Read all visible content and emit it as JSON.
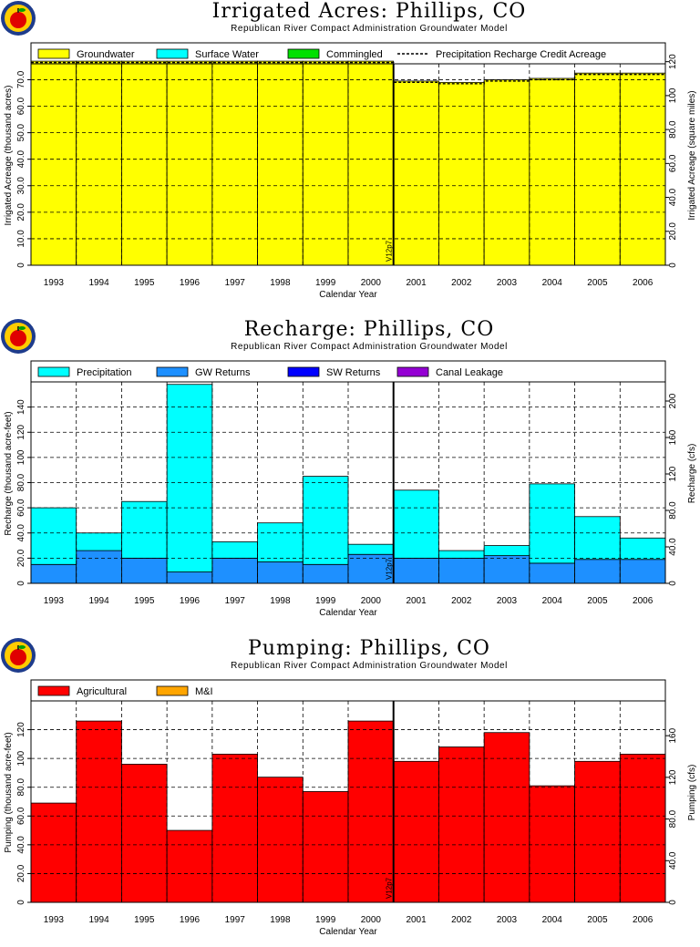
{
  "logo": "apple-logo-icon",
  "colors": {
    "groundwater": "#ffff00",
    "surface_water": "#00ffff",
    "commingled": "#00e000",
    "precipitation": "#00ffff",
    "gw_returns": "#1e90ff",
    "sw_returns": "#0000ff",
    "canal_leakage": "#9400d3",
    "agricultural": "#ff0000",
    "mi": "#ffa500"
  },
  "chart_data": [
    {
      "type": "bar",
      "title": "Irrigated Acres: Phillips, CO",
      "subtitle": "Republican River Compact Administration Groundwater Model",
      "xlabel": "Calendar Year",
      "ylabel": "Irrigated Acreage (thousand acres)",
      "ylabel_right": "Irrigated Acreage (square miles)",
      "categories": [
        "1993",
        "1994",
        "1995",
        "1996",
        "1997",
        "1998",
        "1999",
        "2000",
        "2001",
        "2002",
        "2003",
        "2004",
        "2005",
        "2006"
      ],
      "ylim": [
        0,
        76
      ],
      "yticks": [
        0,
        10,
        20,
        30,
        40,
        50,
        60,
        70
      ],
      "ytick_labels": [
        "0",
        "10.0",
        "20.0",
        "30.0",
        "40.0",
        "50.0",
        "60.0",
        "70.0"
      ],
      "ylim_right": [
        0,
        118.75
      ],
      "yticks_right": [
        0,
        20,
        40,
        60,
        80,
        100,
        120
      ],
      "ytick_labels_right": [
        "0",
        "20.0",
        "40.0",
        "60.0",
        "80.0",
        "100",
        "120"
      ],
      "legend": [
        "Groundwater",
        "Surface Water",
        "Commingled",
        "Precipitation Recharge Credit Acreage"
      ],
      "series": [
        {
          "name": "Groundwater",
          "color_key": "groundwater",
          "values": [
            77,
            77,
            77,
            77,
            77,
            77,
            77,
            77,
            69.5,
            69,
            70,
            70.5,
            72.5,
            72.5
          ]
        },
        {
          "name": "Surface Water",
          "color_key": "surface_water",
          "values": [
            0,
            0,
            0,
            0,
            0,
            0,
            0,
            0,
            0,
            0,
            0,
            0,
            0,
            0
          ]
        },
        {
          "name": "Commingled",
          "color_key": "commingled",
          "values": [
            0,
            0,
            0,
            0,
            0,
            0,
            0,
            0,
            0,
            0,
            0,
            0,
            0,
            0
          ]
        }
      ],
      "dashed_line": {
        "name": "Precipitation Recharge Credit Acreage",
        "values": [
          76.5,
          76.5,
          76.5,
          76.5,
          76.5,
          76.5,
          76.5,
          76.5,
          69,
          68.5,
          69.5,
          70,
          72,
          72
        ]
      },
      "marker": {
        "label": "V12p7",
        "after": "2000"
      },
      "grid": true,
      "legend_position": "top"
    },
    {
      "type": "bar",
      "title": "Recharge: Phillips, CO",
      "subtitle": "Republican River Compact Administration Groundwater Model",
      "xlabel": "Calendar Year",
      "ylabel": "Recharge (thousand acre-feet)",
      "ylabel_right": "Recharge (cfs)",
      "categories": [
        "1993",
        "1994",
        "1995",
        "1996",
        "1997",
        "1998",
        "1999",
        "2000",
        "2001",
        "2002",
        "2003",
        "2004",
        "2005",
        "2006"
      ],
      "ylim": [
        0,
        160
      ],
      "yticks": [
        0,
        20,
        40,
        60,
        80,
        100,
        120,
        140
      ],
      "ytick_labels": [
        "0",
        "20.0",
        "40.0",
        "60.0",
        "80.0",
        "100",
        "120",
        "140"
      ],
      "ylim_right": [
        0,
        221
      ],
      "yticks_right": [
        0,
        40,
        80,
        120,
        160,
        200
      ],
      "ytick_labels_right": [
        "0",
        "40.0",
        "80.0",
        "120",
        "160",
        "200"
      ],
      "legend": [
        "Precipitation",
        "GW Returns",
        "SW Returns",
        "Canal Leakage"
      ],
      "series": [
        {
          "name": "GW Returns",
          "color_key": "gw_returns",
          "values": [
            15,
            26,
            20,
            9,
            20,
            17,
            15,
            23,
            20,
            20,
            22,
            16,
            19,
            19
          ]
        },
        {
          "name": "Precipitation",
          "color_key": "precipitation",
          "values": [
            45,
            14,
            45,
            149,
            13,
            31,
            70,
            8,
            54,
            6,
            8,
            63,
            34,
            17
          ]
        },
        {
          "name": "SW Returns",
          "color_key": "sw_returns",
          "values": [
            0,
            0,
            0,
            0,
            0,
            0,
            0,
            0,
            0,
            0,
            0,
            0,
            0,
            0
          ]
        },
        {
          "name": "Canal Leakage",
          "color_key": "canal_leakage",
          "values": [
            0,
            0,
            0,
            0,
            0,
            0,
            0,
            0,
            0,
            0,
            0,
            0,
            0,
            0
          ]
        }
      ],
      "marker": {
        "label": "V12p7",
        "after": "2000"
      },
      "grid": true,
      "legend_position": "top"
    },
    {
      "type": "bar",
      "title": "Pumping: Phillips, CO",
      "subtitle": "Republican River Compact Administration Groundwater Model",
      "xlabel": "Calendar Year",
      "ylabel": "Pumping (thousand acre-feet)",
      "ylabel_right": "Pumping (cfs)",
      "categories": [
        "1993",
        "1994",
        "1995",
        "1996",
        "1997",
        "1998",
        "1999",
        "2000",
        "2001",
        "2002",
        "2003",
        "2004",
        "2005",
        "2006"
      ],
      "ylim": [
        0,
        140
      ],
      "yticks": [
        0,
        20,
        40,
        60,
        80,
        100,
        120
      ],
      "ytick_labels": [
        "0",
        "20.0",
        "40.0",
        "60.0",
        "80.0",
        "100",
        "120"
      ],
      "ylim_right": [
        0,
        193.4
      ],
      "yticks_right": [
        0,
        40,
        80,
        120,
        160
      ],
      "ytick_labels_right": [
        "0",
        "40.0",
        "80.0",
        "120",
        "160"
      ],
      "legend": [
        "Agricultural",
        "M&I"
      ],
      "series": [
        {
          "name": "Agricultural",
          "color_key": "agricultural",
          "values": [
            69,
            126,
            96,
            50,
            103,
            87,
            77,
            126,
            98,
            108,
            118,
            81,
            98,
            103
          ]
        },
        {
          "name": "M&I",
          "color_key": "mi",
          "values": [
            0,
            0,
            0,
            0,
            0,
            0,
            0,
            0,
            0,
            0,
            0,
            0,
            0,
            0
          ]
        }
      ],
      "marker": {
        "label": "V12p7",
        "after": "2000"
      },
      "grid": true,
      "legend_position": "top"
    }
  ]
}
